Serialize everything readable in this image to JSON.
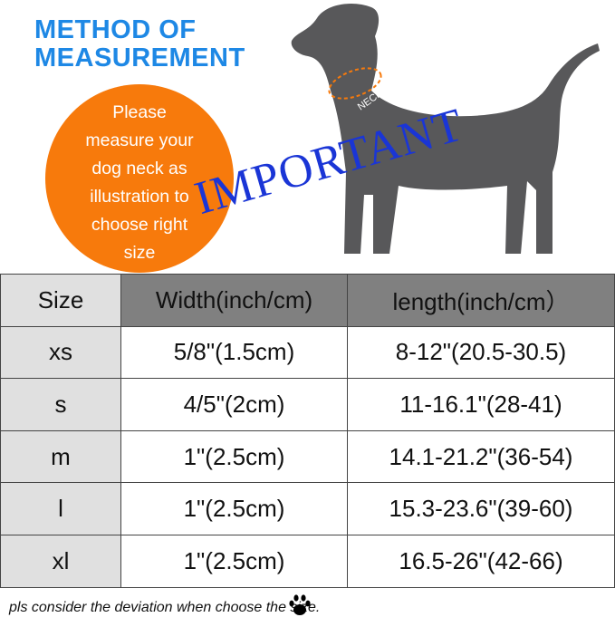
{
  "title_lines": [
    "METHOD OF",
    "MEASUREMENT"
  ],
  "circle_text": [
    "Please",
    "measure your",
    "dog neck as",
    "illustration to",
    "choose right",
    "size"
  ],
  "neck_label": "NECK",
  "important_label": "IMPORTANT",
  "table": {
    "headers": [
      "Size",
      "Width(inch/cm)",
      "length(inch/cm）"
    ],
    "rows": [
      [
        "xs",
        "5/8\"(1.5cm)",
        "8-12\"(20.5-30.5)"
      ],
      [
        "s",
        "4/5\"(2cm)",
        "11-16.1\"(28-41)"
      ],
      [
        "m",
        "1\"(2.5cm)",
        "14.1-21.2\"(36-54)"
      ],
      [
        "l",
        "1\"(2.5cm)",
        "15.3-23.6\"(39-60)"
      ],
      [
        "xl",
        "1\"(2.5cm)",
        "16.5-26\"(42-66)"
      ]
    ]
  },
  "note": "pls consider the deviation when choose the size.",
  "colors": {
    "title": "#1e88e5",
    "circle": "#f77a0c",
    "important": "#1a35d6",
    "dog": "#58585a",
    "header": "#808080",
    "size_col": "#e0e0e0"
  }
}
